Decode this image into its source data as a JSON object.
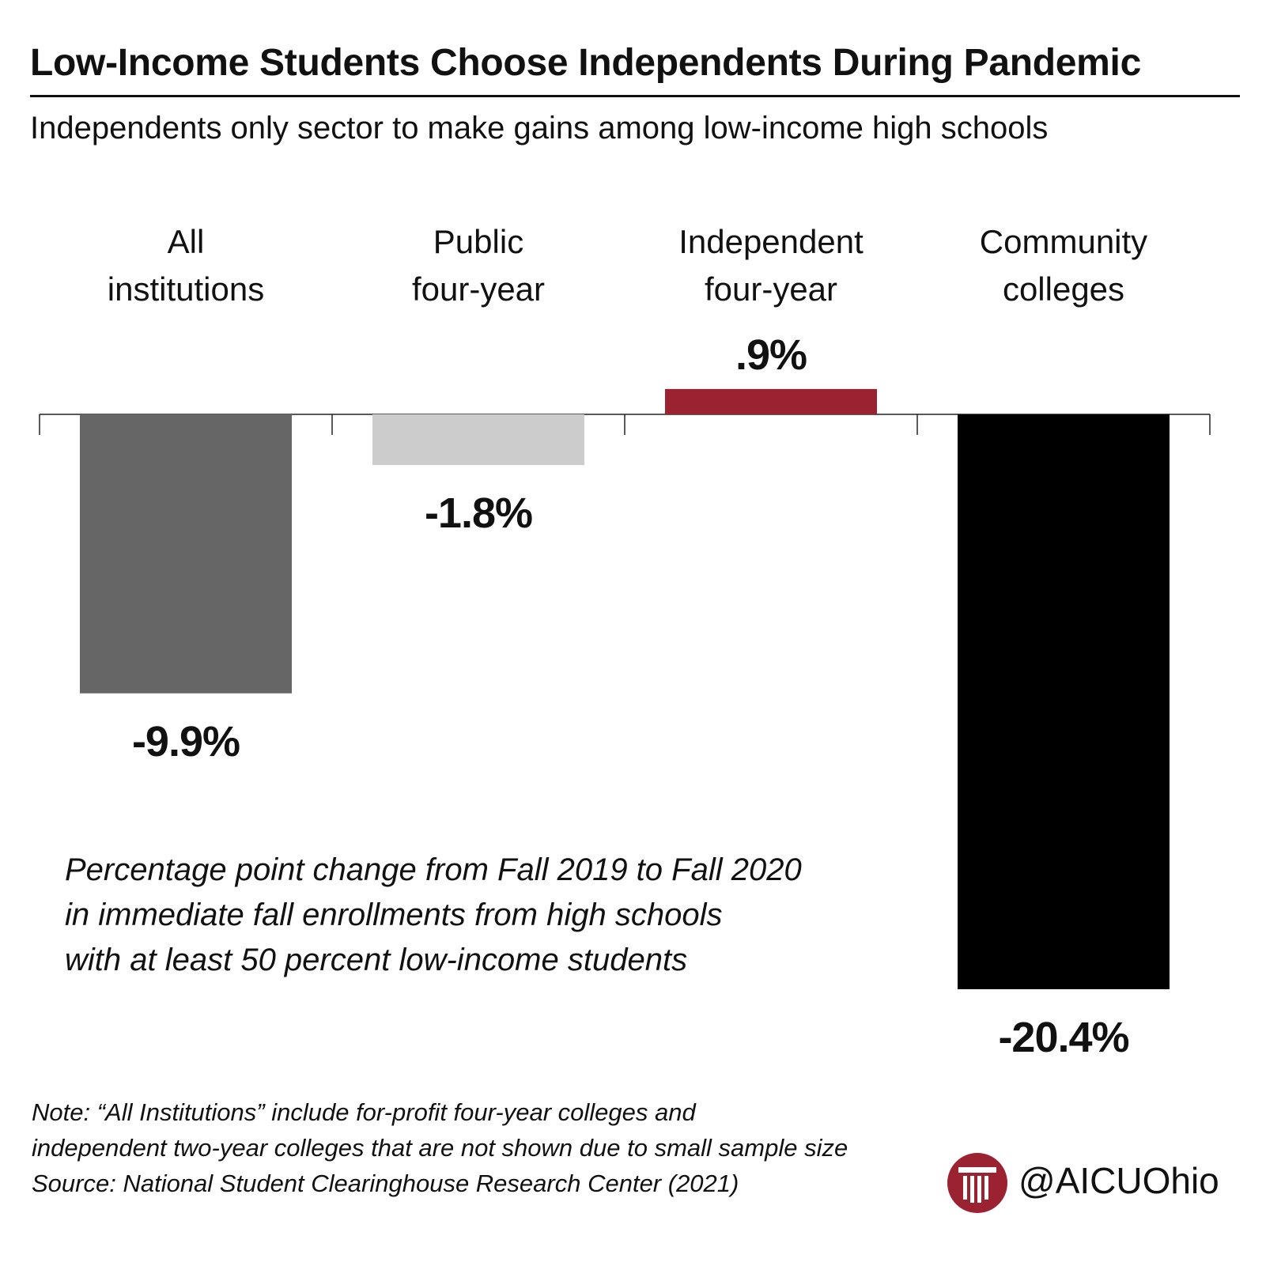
{
  "title": "Low-Income Students Choose Independents During Pandemic",
  "subtitle": "Independents only sector to make gains among low-income high schools",
  "annotation": [
    "Percentage point change from Fall 2019 to Fall 2020",
    "in immediate fall enrollments from high schools",
    "with at least 50 percent low-income students"
  ],
  "note": [
    "Note: “All Institutions” include for-profit four-year colleges and",
    "independent two-year colleges that are not shown due to small sample size",
    "Source: National Student Clearinghouse Research Center (2021)"
  ],
  "brand": {
    "handle": "@AICUOhio",
    "logo_icon": "column-logo-icon",
    "logo_color": "#9b2230"
  },
  "chart_data": {
    "type": "bar",
    "categories": [
      "All institutions",
      "Public four-year",
      "Independent four-year",
      "Community colleges"
    ],
    "category_lines": [
      [
        "All",
        "institutions"
      ],
      [
        "Public",
        "four-year"
      ],
      [
        "Independent",
        "four-year"
      ],
      [
        "Community",
        "colleges"
      ]
    ],
    "values": [
      -9.9,
      -1.8,
      0.9,
      -20.4
    ],
    "value_labels": [
      "-9.9%",
      "-1.8%",
      ".9%",
      "-20.4%"
    ],
    "colors": [
      "#666666",
      "#cccccc",
      "#9b2230",
      "#000000"
    ],
    "ylim": [
      -20.4,
      0.9
    ],
    "grid": false,
    "xlabel": "",
    "ylabel": ""
  }
}
